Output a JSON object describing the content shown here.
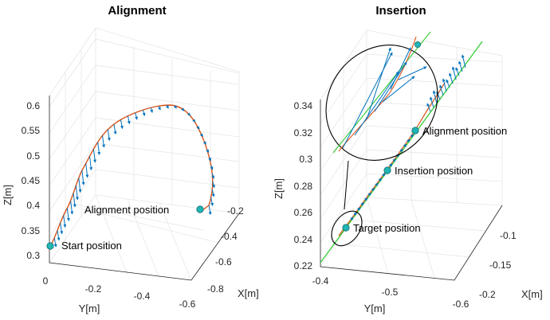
{
  "chart_data": [
    {
      "type": "line",
      "title": "Alignment",
      "projection": "3d",
      "xlabel": "X[m]",
      "ylabel": "Y[m]",
      "zlabel": "Z[m]",
      "x_ticks": [
        "-0.2",
        "-0.4",
        "-0.6",
        "-0.8"
      ],
      "y_ticks": [
        "0",
        "-0.2",
        "-0.4",
        "-0.6"
      ],
      "z_ticks": [
        "0.3",
        "0.35",
        "0.4",
        "0.45",
        "0.5",
        "0.55",
        "0.6"
      ],
      "xlim": [
        -0.85,
        -0.2
      ],
      "ylim": [
        -0.65,
        0
      ],
      "zlim": [
        0.3,
        0.62
      ],
      "grid": true,
      "series": [
        {
          "kind": "path",
          "color": "#d95319",
          "points": [
            {
              "x": -0.8,
              "y": 0.0,
              "z": 0.325
            },
            {
              "x": -0.76,
              "y": -0.06,
              "z": 0.37
            },
            {
              "x": -0.7,
              "y": -0.12,
              "z": 0.45
            },
            {
              "x": -0.63,
              "y": -0.2,
              "z": 0.52
            },
            {
              "x": -0.55,
              "y": -0.3,
              "z": 0.575
            },
            {
              "x": -0.46,
              "y": -0.4,
              "z": 0.6
            },
            {
              "x": -0.38,
              "y": -0.5,
              "z": 0.595
            },
            {
              "x": -0.31,
              "y": -0.57,
              "z": 0.53
            },
            {
              "x": -0.27,
              "y": -0.6,
              "z": 0.45
            },
            {
              "x": -0.25,
              "y": -0.62,
              "z": 0.395
            }
          ]
        },
        {
          "kind": "quiver",
          "color": "#0072bd"
        }
      ],
      "annotations": [
        {
          "label": "Start position",
          "x": -0.8,
          "y": 0.0,
          "z": 0.325
        },
        {
          "label": "Alignment position",
          "x": -0.25,
          "y": -0.62,
          "z": 0.395
        }
      ]
    },
    {
      "type": "line",
      "title": "Insertion",
      "projection": "3d",
      "xlabel": "X[m]",
      "ylabel": "Y[m]",
      "zlabel": "Z[m]",
      "x_ticks": [
        "-0.1",
        "-0.15",
        "-0.2"
      ],
      "y_ticks": [
        "-0.4",
        "-0.5",
        "-0.6"
      ],
      "z_ticks": [
        "0.22",
        "0.24",
        "0.26",
        "0.28",
        "0.3",
        "0.32",
        "0.34"
      ],
      "xlim": [
        -0.22,
        -0.08
      ],
      "ylim": [
        -0.6,
        -0.4
      ],
      "zlim": [
        0.22,
        0.35
      ],
      "grid": true,
      "series": [
        {
          "kind": "reference line",
          "color": "#33cc33"
        },
        {
          "kind": "path",
          "color": "#d95319"
        },
        {
          "kind": "quiver",
          "color": "#0072bd"
        }
      ],
      "annotations": [
        {
          "label": "Alignment position",
          "z": 0.322
        },
        {
          "label": "Insertion position",
          "z": 0.292
        },
        {
          "label": "Target position",
          "z": 0.25
        }
      ],
      "inset": {
        "shape": "ellipse",
        "magnifies": "Target position"
      }
    }
  ],
  "colors": {
    "marker": "#22b5b5",
    "path": "#d95319",
    "arrows": "#0072bd",
    "reference": "#33cc33",
    "grid": "#e6e6e6"
  }
}
